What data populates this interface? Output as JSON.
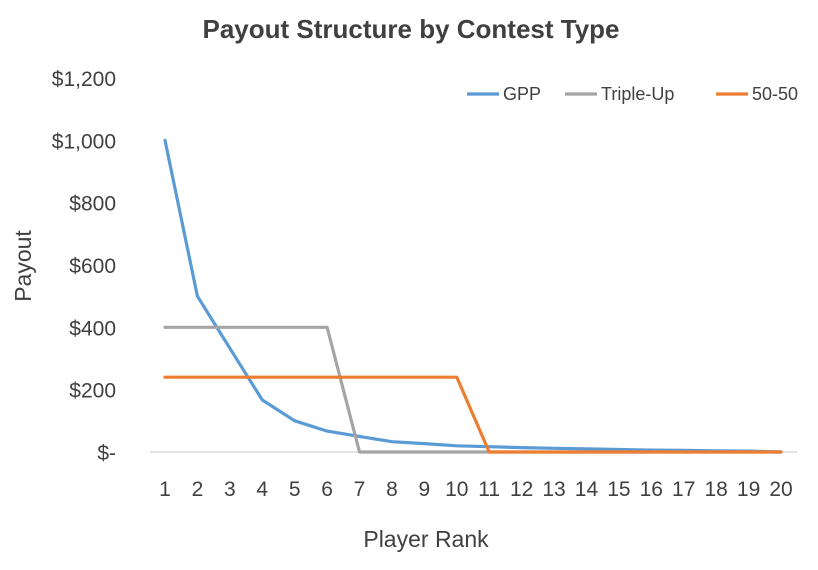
{
  "chart_data": {
    "type": "line",
    "title": "Payout Structure by Contest Type",
    "xlabel": "Player Rank",
    "ylabel": "Payout",
    "x": [
      1,
      2,
      3,
      4,
      5,
      6,
      7,
      8,
      9,
      10,
      11,
      12,
      13,
      14,
      15,
      16,
      17,
      18,
      19,
      20
    ],
    "yticks": [
      0,
      200,
      400,
      600,
      800,
      1000,
      1200
    ],
    "ytick_labels": [
      "$-",
      "$200",
      "$400",
      "$600",
      "$800",
      "$1,000",
      "$1,200"
    ],
    "ylim": [
      0,
      1200
    ],
    "legend_position": "top-right",
    "grid": false,
    "series": [
      {
        "name": "GPP",
        "color": "#5b9bd5",
        "values": [
          1000,
          500,
          333,
          167,
          100,
          67,
          50,
          33,
          27,
          20,
          17,
          14,
          12,
          10,
          8,
          6,
          5,
          4,
          3,
          0
        ]
      },
      {
        "name": "Triple-Up",
        "color": "#a5a5a5",
        "values": [
          400,
          400,
          400,
          400,
          400,
          400,
          0,
          0,
          0,
          0,
          0,
          0,
          0,
          0,
          0,
          0,
          0,
          0,
          0,
          0
        ]
      },
      {
        "name": "50-50",
        "color": "#ed7d31",
        "values": [
          240,
          240,
          240,
          240,
          240,
          240,
          240,
          240,
          240,
          240,
          0,
          0,
          0,
          0,
          0,
          0,
          0,
          0,
          0,
          0
        ]
      }
    ]
  }
}
